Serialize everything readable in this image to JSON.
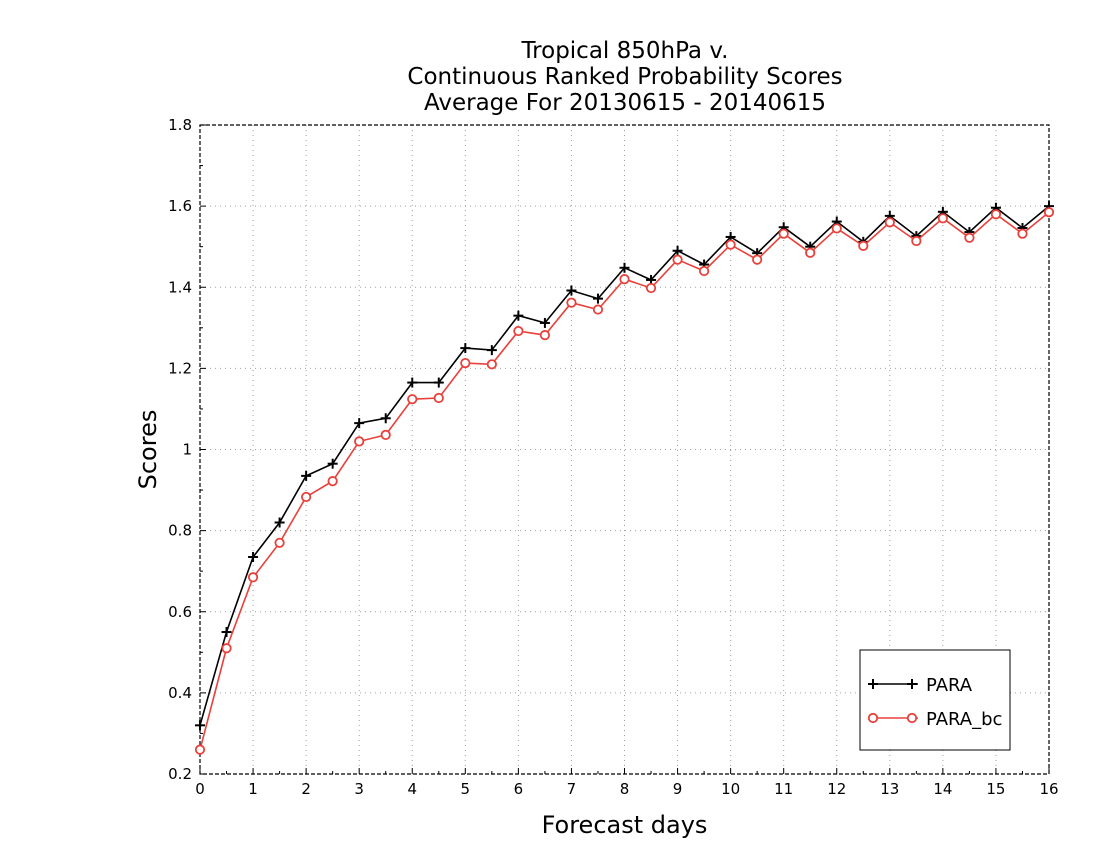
{
  "chart_data": {
    "type": "line",
    "title": [
      "Tropical 850hPa v.",
      "Continuous Ranked Probability Scores",
      "Average For 20130615 - 20140615"
    ],
    "xlabel": "Forecast days",
    "ylabel": "Scores",
    "xlim": [
      0,
      16
    ],
    "ylim": [
      0.2,
      1.8
    ],
    "xticks": [
      "0",
      "1",
      "2",
      "3",
      "4",
      "5",
      "6",
      "7",
      "8",
      "9",
      "10",
      "11",
      "12",
      "13",
      "14",
      "15",
      "16"
    ],
    "yticks": [
      "0.2",
      "0.4",
      "0.6",
      "0.8",
      "1",
      "1.2",
      "1.4",
      "1.6",
      "1.8"
    ],
    "grid": true,
    "legend_position": "bottom-right",
    "x": [
      0,
      0.5,
      1,
      1.5,
      2,
      2.5,
      3,
      3.5,
      4,
      4.5,
      5,
      5.5,
      6,
      6.5,
      7,
      7.5,
      8,
      8.5,
      9,
      9.5,
      10,
      10.5,
      11,
      11.5,
      12,
      12.5,
      13,
      13.5,
      14,
      14.5,
      15,
      15.5,
      16
    ],
    "series": [
      {
        "name": "PARA",
        "color": "#000000",
        "marker": "plus",
        "values": [
          0.32,
          0.55,
          0.735,
          0.82,
          0.935,
          0.965,
          1.065,
          1.077,
          1.165,
          1.165,
          1.25,
          1.245,
          1.33,
          1.312,
          1.392,
          1.372,
          1.448,
          1.418,
          1.49,
          1.456,
          1.524,
          1.484,
          1.548,
          1.5,
          1.562,
          1.512,
          1.576,
          1.526,
          1.586,
          1.536,
          1.596,
          1.546,
          1.6
        ]
      },
      {
        "name": "PARA_bc",
        "color": "#e8413b",
        "marker": "circle",
        "values": [
          0.26,
          0.51,
          0.685,
          0.77,
          0.883,
          0.922,
          1.02,
          1.036,
          1.124,
          1.127,
          1.213,
          1.21,
          1.292,
          1.282,
          1.362,
          1.345,
          1.42,
          1.398,
          1.468,
          1.44,
          1.505,
          1.468,
          1.532,
          1.485,
          1.545,
          1.502,
          1.56,
          1.514,
          1.57,
          1.522,
          1.58,
          1.532,
          1.585
        ]
      }
    ]
  }
}
